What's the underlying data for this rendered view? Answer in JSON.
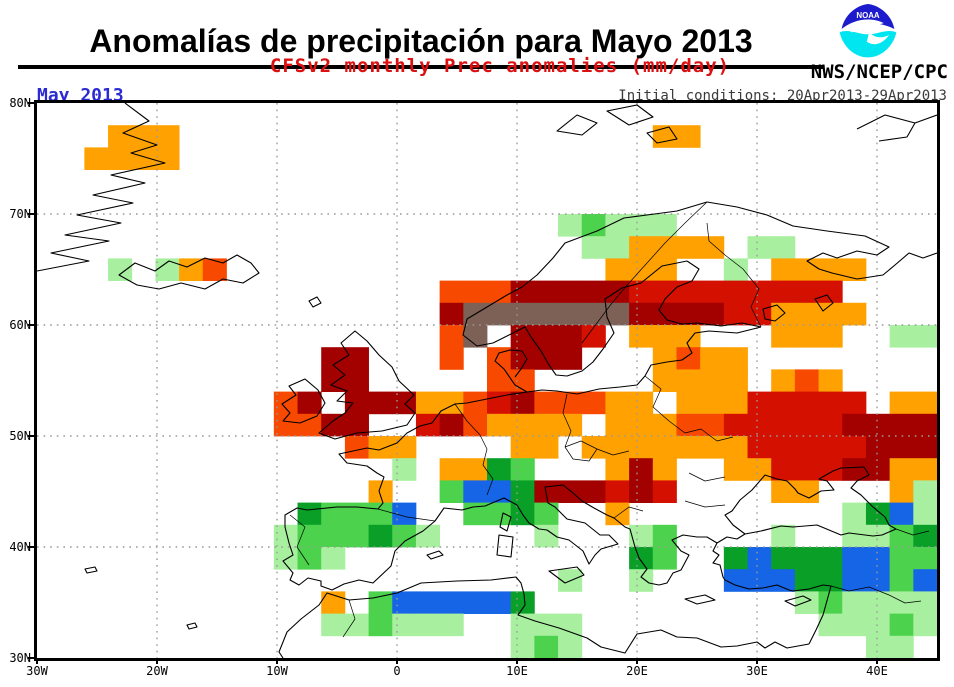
{
  "header": {
    "title": "Anomalías de precipitación para Mayo 2013",
    "subtitle": "CFSv2 monthly Prec anomalies (mm/day)",
    "agency": "NWS/NCEP/CPC",
    "logo_label": "NOAA"
  },
  "map": {
    "date_label": "May 2013",
    "initial_conditions": "Initial conditions: 20Apr2013-29Apr2013",
    "lat_ticks": [
      "80N",
      "70N",
      "60N",
      "50N",
      "40N",
      "30N"
    ],
    "lon_ticks": [
      "30W",
      "20W",
      "10W",
      "0",
      "10E",
      "20E",
      "30E",
      "40E"
    ]
  },
  "colors": {
    "title": "#000000",
    "subtitle": "#dc1010",
    "date_label": "#2b2bd4",
    "initial_conditions": "#3a3a3a",
    "graticule": "#9a9a9a",
    "logo_dark_blue": "#1c1ccd",
    "logo_cyan": "#00e6f0"
  },
  "chart_data": {
    "type": "heatmap",
    "title": "CFSv2 monthly Prec anomalies (mm/day)",
    "units": "mm/day",
    "region": {
      "lon_min": -30,
      "lon_max": 45,
      "lat_min": 30,
      "lat_max": 80
    },
    "grid_cell_deg": 2,
    "columns": 38,
    "rows": 25,
    "axis": {
      "lon_gridlines_deg": [
        -20,
        -10,
        0,
        10,
        20,
        30,
        40
      ],
      "lat_gridlines_deg": [
        70,
        60,
        50,
        40
      ],
      "grid_style": "dotted"
    },
    "palette": {
      ".": {
        "hex": "none"
      },
      "o": {
        "hex": "#ffa100"
      },
      "r": {
        "hex": "#f74a00"
      },
      "R": {
        "hex": "#d41000"
      },
      "D": {
        "hex": "#a30000"
      },
      "N": {
        "hex": "#7d6056"
      },
      "1": {
        "hex": "#a8f0a0"
      },
      "2": {
        "hex": "#4cd24c"
      },
      "3": {
        "hex": "#0aa028"
      },
      "b": {
        "hex": "#1565e6"
      }
    },
    "grid": [
      "......................................",
      "...ooo....................oo..........",
      "..oooo................................",
      "......................................",
      "......................................",
      "......................12111...........",
      ".......................11oooo.11......",
      "...1.1or................ooo..1.oooo...",
      ".................rrrDDDDDRRRRRRRRR....",
      ".................DNNNNNNNDDDDRRoooo...",
      ".................rN.DDDR.ooo...ooo..11",
      "............DD...r.rDDD...oroo........",
      "............DD.....rr.....oooo.oro....",
      "..........rD.DDDoorRDrrroo.oooRRRRR.oo",
      "..........rrDD..RDroooo.ooorrRRRRRDDDD",
      ".............roo....oo.oooooooRRRRRDDD",
      "...............1.oo32...oDo..ooRRRDDoo",
      "..............o..2bb3DDDRDR....oo...o1",
      "...........3222b..2232..o.........13b1",
      "..........1222321....1...12....1..1123",
      "..........121............32..3b333bb22",
      "......................1..1...bbb33bb2b",
      "............o.2bbbbb3...........121111",
      "............112111..111..........11121",
      "....................121............11."
    ]
  }
}
